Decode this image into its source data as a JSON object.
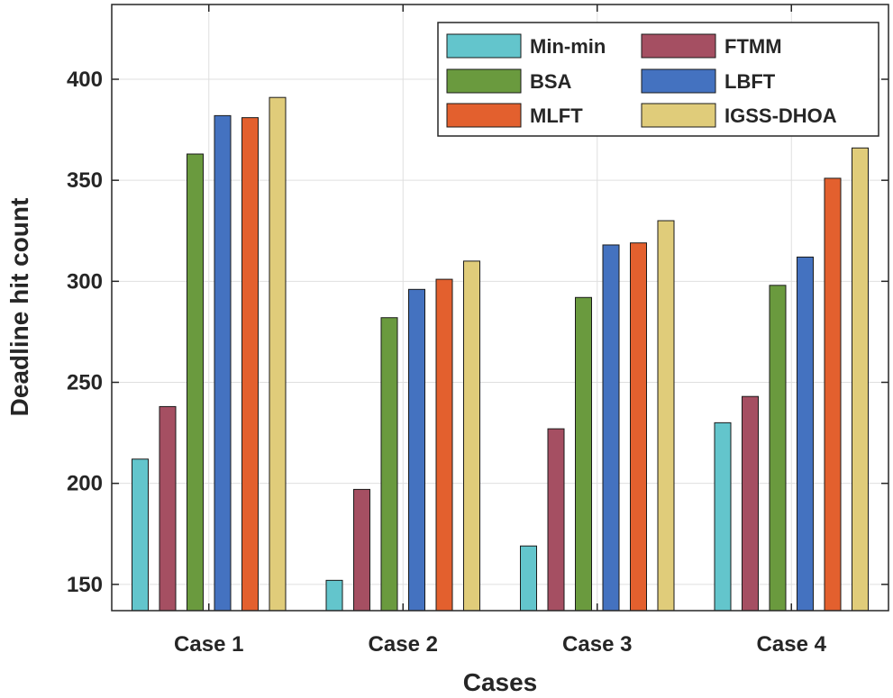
{
  "chart_data": {
    "type": "bar",
    "title": "",
    "xlabel": "Cases",
    "ylabel": "Deadline hit count",
    "categories": [
      "Case 1",
      "Case 2",
      "Case 3",
      "Case 4"
    ],
    "ylim": [
      137,
      437
    ],
    "yticks": [
      150,
      200,
      250,
      300,
      350,
      400
    ],
    "grid": true,
    "legend_position": "top-right",
    "series": [
      {
        "name": "Min-min",
        "color": "#63c5cc",
        "values": [
          212,
          152,
          169,
          230
        ]
      },
      {
        "name": "FTMM",
        "color": "#a54f62",
        "values": [
          238,
          197,
          227,
          243
        ]
      },
      {
        "name": "BSA",
        "color": "#6a9a3e",
        "values": [
          363,
          282,
          292,
          298
        ]
      },
      {
        "name": "LBFT",
        "color": "#4472c0",
        "values": [
          382,
          296,
          318,
          312
        ]
      },
      {
        "name": "MLFT",
        "color": "#e3602e",
        "values": [
          381,
          301,
          319,
          351
        ]
      },
      {
        "name": "IGSS-DHOA",
        "color": "#e0cc7a",
        "values": [
          391,
          310,
          330,
          366
        ]
      }
    ],
    "legend_order": [
      "Min-min",
      "FTMM",
      "BSA",
      "LBFT",
      "MLFT",
      "IGSS-DHOA"
    ]
  }
}
